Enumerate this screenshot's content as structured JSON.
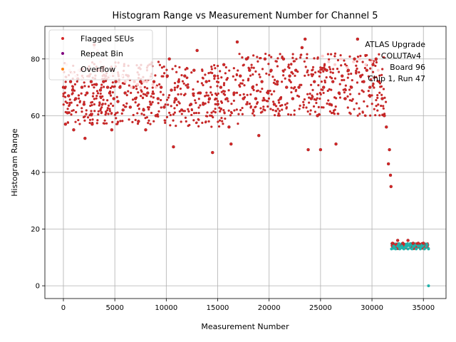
{
  "chart_data": {
    "type": "scatter",
    "title": "Histogram Range vs Measurement Number for Channel 5",
    "xlabel": "Measurement Number",
    "ylabel": "Histogram Range",
    "xlim": [
      -1800,
      37200
    ],
    "ylim": [
      -4.5,
      91.5
    ],
    "xticks": [
      0,
      5000,
      10000,
      15000,
      20000,
      25000,
      30000,
      35000
    ],
    "yticks": [
      0,
      20,
      40,
      60,
      80
    ],
    "grid": true,
    "legend_position": "top-left",
    "annotation": [
      "ATLAS Upgrade",
      "COLUTAv4",
      "Board 96",
      "Chip 1, Run 47"
    ],
    "series": [
      {
        "name": "Flagged SEUs",
        "color": "#d62728",
        "points": [
          [
            0,
            70
          ],
          [
            200,
            57
          ],
          [
            400,
            61
          ],
          [
            500,
            67
          ],
          [
            700,
            72
          ],
          [
            900,
            69
          ],
          [
            1000,
            55
          ],
          [
            1200,
            66
          ],
          [
            1400,
            73
          ],
          [
            1600,
            76
          ],
          [
            1800,
            70
          ],
          [
            2000,
            64
          ],
          [
            2100,
            52
          ],
          [
            2300,
            68
          ],
          [
            2500,
            74
          ],
          [
            2700,
            72
          ],
          [
            2800,
            57
          ],
          [
            3000,
            85
          ],
          [
            3200,
            71
          ],
          [
            3400,
            76
          ],
          [
            3600,
            69
          ],
          [
            3900,
            72
          ],
          [
            4100,
            74
          ],
          [
            4300,
            70
          ],
          [
            4500,
            68
          ],
          [
            4700,
            55
          ],
          [
            4900,
            66
          ],
          [
            5100,
            72
          ],
          [
            5300,
            65
          ],
          [
            5500,
            70
          ],
          [
            5800,
            62
          ],
          [
            6000,
            68
          ],
          [
            6300,
            74
          ],
          [
            6500,
            63
          ],
          [
            6800,
            70
          ],
          [
            7000,
            66
          ],
          [
            7300,
            58
          ],
          [
            7500,
            72
          ],
          [
            7800,
            62
          ],
          [
            8000,
            55
          ],
          [
            8200,
            68
          ],
          [
            8500,
            64
          ],
          [
            8800,
            72
          ],
          [
            9000,
            60
          ],
          [
            9200,
            66
          ],
          [
            9500,
            70
          ],
          [
            9800,
            63
          ],
          [
            10100,
            74
          ],
          [
            10300,
            80
          ],
          [
            10500,
            69
          ],
          [
            10700,
            49
          ],
          [
            10900,
            66
          ],
          [
            11200,
            72
          ],
          [
            11500,
            62
          ],
          [
            11800,
            74
          ],
          [
            12100,
            70
          ],
          [
            12400,
            64
          ],
          [
            12700,
            76
          ],
          [
            13000,
            83
          ],
          [
            13300,
            68
          ],
          [
            13600,
            64
          ],
          [
            13900,
            72
          ],
          [
            14200,
            66
          ],
          [
            14500,
            47
          ],
          [
            14700,
            74
          ],
          [
            15000,
            64
          ],
          [
            15300,
            70
          ],
          [
            15600,
            78
          ],
          [
            15900,
            66
          ],
          [
            16100,
            56
          ],
          [
            16300,
            50
          ],
          [
            16600,
            68
          ],
          [
            16900,
            86
          ],
          [
            17200,
            74
          ],
          [
            17500,
            66
          ],
          [
            17800,
            80
          ],
          [
            18100,
            76
          ],
          [
            18400,
            70
          ],
          [
            18700,
            66
          ],
          [
            19000,
            53
          ],
          [
            19300,
            72
          ],
          [
            19600,
            80
          ],
          [
            19900,
            68
          ],
          [
            20200,
            76
          ],
          [
            20500,
            64
          ],
          [
            20800,
            72
          ],
          [
            21100,
            66
          ],
          [
            21400,
            80
          ],
          [
            21700,
            70
          ],
          [
            22000,
            74
          ],
          [
            22300,
            66
          ],
          [
            22600,
            76
          ],
          [
            22900,
            70
          ],
          [
            23200,
            84
          ],
          [
            23500,
            87
          ],
          [
            23800,
            48
          ],
          [
            24100,
            66
          ],
          [
            24400,
            72
          ],
          [
            24700,
            60
          ],
          [
            25000,
            48
          ],
          [
            25300,
            70
          ],
          [
            25600,
            76
          ],
          [
            25900,
            64
          ],
          [
            26200,
            72
          ],
          [
            26500,
            50
          ],
          [
            26800,
            68
          ],
          [
            27100,
            74
          ],
          [
            27400,
            66
          ],
          [
            27700,
            76
          ],
          [
            28000,
            70
          ],
          [
            28300,
            80
          ],
          [
            28600,
            87
          ],
          [
            28900,
            74
          ],
          [
            29200,
            72
          ],
          [
            29500,
            76
          ],
          [
            29800,
            70
          ],
          [
            30100,
            78
          ],
          [
            30400,
            80
          ],
          [
            30700,
            72
          ],
          [
            31000,
            66
          ],
          [
            31200,
            60
          ],
          [
            31400,
            56
          ],
          [
            31600,
            43
          ],
          [
            31700,
            48
          ],
          [
            31800,
            39
          ],
          [
            31850,
            35
          ],
          [
            32000,
            15
          ],
          [
            32500,
            16
          ],
          [
            33000,
            15
          ],
          [
            33500,
            16
          ],
          [
            34000,
            15
          ],
          [
            34500,
            15
          ],
          [
            35000,
            15
          ]
        ]
      },
      {
        "name": "Repeat Bin",
        "color": "#800080",
        "points": []
      },
      {
        "name": "Overflow",
        "color": "#ff7f0e",
        "points": []
      },
      {
        "name": "",
        "color": "#ffcccc",
        "points": [
          [
            300,
            78
          ],
          [
            600,
            76
          ],
          [
            900,
            75
          ],
          [
            1200,
            74
          ],
          [
            1500,
            76
          ],
          [
            1800,
            73
          ],
          [
            2100,
            77
          ],
          [
            2400,
            80
          ],
          [
            2700,
            82
          ],
          [
            3000,
            84
          ],
          [
            3300,
            83
          ],
          [
            3600,
            79
          ],
          [
            3900,
            80
          ],
          [
            4200,
            76
          ],
          [
            4500,
            74
          ],
          [
            4800,
            75
          ],
          [
            5100,
            73
          ],
          [
            5400,
            72
          ],
          [
            5700,
            74
          ],
          [
            6000,
            72
          ],
          [
            6300,
            73
          ],
          [
            6600,
            70
          ],
          [
            6900,
            72
          ],
          [
            7200,
            71
          ],
          [
            7500,
            70
          ],
          [
            7800,
            72
          ],
          [
            8100,
            72
          ],
          [
            8400,
            73
          ],
          [
            8700,
            71
          ],
          [
            9000,
            70
          ],
          [
            25200,
            81
          ],
          [
            25800,
            79
          ],
          [
            26400,
            78
          ],
          [
            27000,
            80
          ],
          [
            27600,
            77
          ],
          [
            28200,
            79
          ],
          [
            28800,
            80
          ],
          [
            29400,
            78
          ],
          [
            30000,
            79
          ],
          [
            30600,
            76
          ]
        ]
      },
      {
        "name": "",
        "color": "#20b2aa",
        "points": [
          [
            31900,
            13
          ],
          [
            32100,
            14
          ],
          [
            32300,
            13
          ],
          [
            32500,
            14
          ],
          [
            32700,
            13
          ],
          [
            32900,
            14
          ],
          [
            33100,
            13
          ],
          [
            33300,
            14
          ],
          [
            33500,
            13
          ],
          [
            33700,
            14
          ],
          [
            33900,
            13
          ],
          [
            34100,
            14
          ],
          [
            34300,
            13
          ],
          [
            34500,
            14
          ],
          [
            34700,
            13
          ],
          [
            34900,
            14
          ],
          [
            35100,
            13
          ],
          [
            35300,
            14
          ],
          [
            35500,
            13
          ],
          [
            35500,
            0
          ]
        ]
      }
    ]
  }
}
